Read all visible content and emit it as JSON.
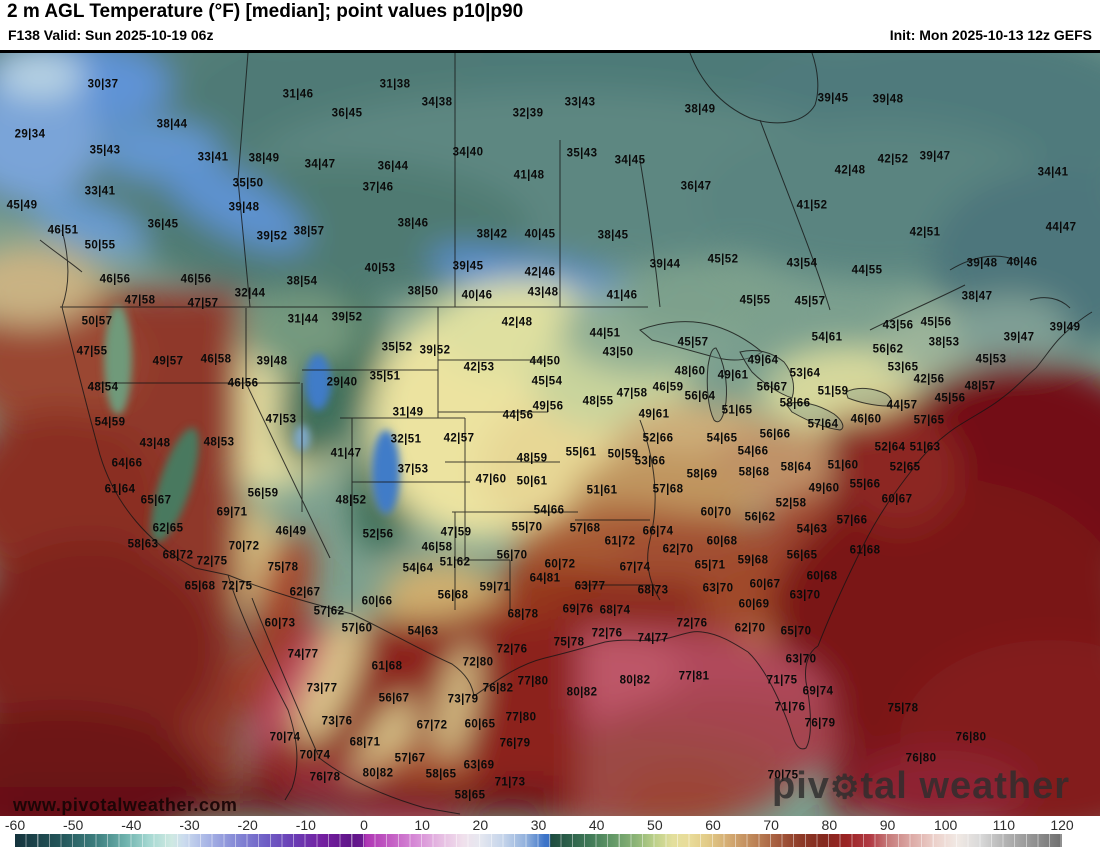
{
  "header": {
    "title": "2 m AGL Temperature (°F) [median]; point values p10|p90",
    "valid": "F138 Valid: Sun 2025-10-19 06z",
    "init": "Init: Mon 2025-10-13 12z GEFS"
  },
  "watermark": {
    "url_text": "www.pivotalweather.com",
    "brand_pre": "piv",
    "brand_gear": "⚙",
    "brand_post": "tal weather"
  },
  "colorbar": {
    "ticks": [
      -60,
      -50,
      -40,
      -30,
      -20,
      -10,
      0,
      10,
      20,
      30,
      40,
      50,
      60,
      70,
      80,
      90,
      100,
      110,
      120
    ],
    "gradient": [
      [
        0,
        "#15333d"
      ],
      [
        4.4,
        "#23565a"
      ],
      [
        7.8,
        "#3d7f7f"
      ],
      [
        10.6,
        "#6fb3ae"
      ],
      [
        12.8,
        "#a5d8d2"
      ],
      [
        15,
        "#cfe9e2"
      ],
      [
        16.1,
        "#ccdcee"
      ],
      [
        18.3,
        "#a9b6e6"
      ],
      [
        21.1,
        "#8589d6"
      ],
      [
        23.9,
        "#6f5fc6"
      ],
      [
        26.7,
        "#6a3cb4"
      ],
      [
        29.4,
        "#741fa0"
      ],
      [
        32.2,
        "#5f1588"
      ],
      [
        33.2,
        "#6a1890"
      ],
      [
        33.5,
        "#ae35b4"
      ],
      [
        36.1,
        "#c561c5"
      ],
      [
        38.3,
        "#d78cd7"
      ],
      [
        40.6,
        "#e6bbe2"
      ],
      [
        42.8,
        "#f0e0ec"
      ],
      [
        44.4,
        "#e6e8f0"
      ],
      [
        46.7,
        "#c3d3ea"
      ],
      [
        48.9,
        "#8fafdc"
      ],
      [
        50.6,
        "#3d74c8"
      ],
      [
        51,
        "#3b72c6"
      ],
      [
        51.2,
        "#1e4c40"
      ],
      [
        52.8,
        "#2c5f4a"
      ],
      [
        55,
        "#417b58"
      ],
      [
        57.2,
        "#659a68"
      ],
      [
        59.4,
        "#8fb678"
      ],
      [
        61.1,
        "#bcd089"
      ],
      [
        62.8,
        "#e3df9d"
      ],
      [
        64.4,
        "#e9dc9a"
      ],
      [
        66.1,
        "#e2cb87"
      ],
      [
        68.3,
        "#d3a971"
      ],
      [
        70.6,
        "#bd8457"
      ],
      [
        72.8,
        "#a55c3e"
      ],
      [
        75,
        "#8e3b28"
      ],
      [
        77.2,
        "#84291e"
      ],
      [
        79.4,
        "#9a2323"
      ],
      [
        81.7,
        "#b23a44"
      ],
      [
        83.3,
        "#c57878"
      ],
      [
        85.6,
        "#ddaaa6"
      ],
      [
        87.8,
        "#ecd0ca"
      ],
      [
        90,
        "#f1e9e4"
      ],
      [
        92.2,
        "#d9d9d9"
      ],
      [
        94.4,
        "#b5b5b5"
      ],
      [
        97.2,
        "#939393"
      ],
      [
        100,
        "#6f6f6f"
      ]
    ]
  },
  "map": {
    "points": [
      [
        "30|37",
        103,
        82
      ],
      [
        "29|34",
        30,
        132
      ],
      [
        "38|44",
        172,
        122
      ],
      [
        "35|43",
        105,
        148
      ],
      [
        "33|41",
        213,
        155
      ],
      [
        "38|49",
        264,
        156
      ],
      [
        "35|50",
        248,
        181
      ],
      [
        "33|41",
        100,
        189
      ],
      [
        "45|49",
        22,
        203
      ],
      [
        "39|48",
        244,
        205
      ],
      [
        "36|45",
        163,
        222
      ],
      [
        "46|51",
        63,
        228
      ],
      [
        "50|55",
        100,
        243
      ],
      [
        "39|52",
        272,
        234
      ],
      [
        "46|56",
        115,
        277
      ],
      [
        "46|56",
        196,
        277
      ],
      [
        "32|44",
        250,
        291
      ],
      [
        "47|58",
        140,
        298
      ],
      [
        "47|57",
        203,
        301
      ],
      [
        "31|46",
        298,
        92
      ],
      [
        "31|38",
        395,
        82
      ],
      [
        "34|38",
        437,
        100
      ],
      [
        "36|45",
        347,
        111
      ],
      [
        "32|39",
        528,
        111
      ],
      [
        "34|47",
        320,
        162
      ],
      [
        "36|44",
        393,
        164
      ],
      [
        "34|40",
        468,
        150
      ],
      [
        "41|48",
        529,
        173
      ],
      [
        "37|46",
        378,
        185
      ],
      [
        "38|46",
        413,
        221
      ],
      [
        "38|57",
        309,
        229
      ],
      [
        "38|42",
        492,
        232
      ],
      [
        "40|45",
        540,
        232
      ],
      [
        "40|53",
        380,
        266
      ],
      [
        "39|45",
        468,
        264
      ],
      [
        "38|54",
        302,
        279
      ],
      [
        "38|50",
        423,
        289
      ],
      [
        "40|46",
        477,
        293
      ],
      [
        "42|46",
        540,
        270
      ],
      [
        "43|48",
        543,
        290
      ],
      [
        "33|43",
        580,
        100
      ],
      [
        "38|49",
        700,
        107
      ],
      [
        "35|43",
        582,
        151
      ],
      [
        "34|45",
        630,
        158
      ],
      [
        "36|47",
        696,
        184
      ],
      [
        "41|52",
        812,
        203
      ],
      [
        "38|45",
        613,
        233
      ],
      [
        "45|52",
        723,
        257
      ],
      [
        "43|54",
        802,
        261
      ],
      [
        "39|44",
        665,
        262
      ],
      [
        "41|46",
        622,
        293
      ],
      [
        "45|55",
        755,
        298
      ],
      [
        "45|57",
        810,
        299
      ],
      [
        "39|45",
        833,
        96
      ],
      [
        "39|48",
        888,
        97
      ],
      [
        "42|52",
        893,
        157
      ],
      [
        "39|47",
        935,
        154
      ],
      [
        "42|48",
        850,
        168
      ],
      [
        "34|41",
        1053,
        170
      ],
      [
        "42|51",
        925,
        230
      ],
      [
        "44|47",
        1061,
        225
      ],
      [
        "44|55",
        867,
        268
      ],
      [
        "39|48",
        982,
        261
      ],
      [
        "40|46",
        1022,
        260
      ],
      [
        "38|47",
        977,
        294
      ],
      [
        "50|57",
        97,
        319
      ],
      [
        "47|55",
        92,
        349
      ],
      [
        "49|57",
        168,
        359
      ],
      [
        "46|58",
        216,
        357
      ],
      [
        "46|56",
        243,
        381
      ],
      [
        "48|54",
        103,
        385
      ],
      [
        "54|59",
        110,
        420
      ],
      [
        "43|48",
        155,
        441
      ],
      [
        "48|53",
        219,
        440
      ],
      [
        "64|66",
        127,
        461
      ],
      [
        "61|64",
        120,
        487
      ],
      [
        "65|67",
        156,
        498
      ],
      [
        "56|59",
        263,
        491
      ],
      [
        "69|71",
        232,
        510
      ],
      [
        "62|65",
        168,
        526
      ],
      [
        "58|63",
        143,
        542
      ],
      [
        "70|72",
        244,
        544
      ],
      [
        "68|72",
        178,
        553
      ],
      [
        "72|75",
        212,
        559
      ],
      [
        "31|44",
        303,
        317
      ],
      [
        "39|52",
        347,
        315
      ],
      [
        "42|48",
        517,
        320
      ],
      [
        "35|52",
        397,
        345
      ],
      [
        "39|52",
        435,
        348
      ],
      [
        "39|48",
        272,
        359
      ],
      [
        "29|40",
        342,
        380
      ],
      [
        "35|51",
        385,
        374
      ],
      [
        "42|53",
        479,
        365
      ],
      [
        "44|50",
        545,
        359
      ],
      [
        "45|54",
        547,
        379
      ],
      [
        "47|53",
        281,
        417
      ],
      [
        "31|49",
        408,
        410
      ],
      [
        "44|56",
        518,
        413
      ],
      [
        "32|51",
        406,
        437
      ],
      [
        "42|57",
        459,
        436
      ],
      [
        "41|47",
        346,
        451
      ],
      [
        "48|59",
        532,
        456
      ],
      [
        "37|53",
        413,
        467
      ],
      [
        "47|60",
        491,
        477
      ],
      [
        "50|61",
        532,
        479
      ],
      [
        "48|52",
        351,
        498
      ],
      [
        "46|49",
        291,
        529
      ],
      [
        "52|56",
        378,
        532
      ],
      [
        "47|59",
        456,
        530
      ],
      [
        "55|70",
        527,
        525
      ],
      [
        "46|58",
        437,
        545
      ],
      [
        "56|70",
        512,
        553
      ],
      [
        "51|62",
        455,
        560
      ],
      [
        "54|66",
        549,
        508
      ],
      [
        "44|51",
        605,
        331
      ],
      [
        "45|57",
        693,
        340
      ],
      [
        "43|50",
        618,
        350
      ],
      [
        "49|64",
        763,
        358
      ],
      [
        "48|60",
        690,
        369
      ],
      [
        "49|61",
        733,
        373
      ],
      [
        "56|67",
        772,
        385
      ],
      [
        "53|64",
        805,
        371
      ],
      [
        "46|59",
        668,
        385
      ],
      [
        "47|58",
        632,
        391
      ],
      [
        "48|55",
        598,
        399
      ],
      [
        "56|64",
        700,
        394
      ],
      [
        "58|66",
        795,
        401
      ],
      [
        "51|65",
        737,
        408
      ],
      [
        "49|61",
        654,
        412
      ],
      [
        "49|56",
        548,
        404
      ],
      [
        "52|66",
        658,
        436
      ],
      [
        "54|65",
        722,
        436
      ],
      [
        "56|66",
        775,
        432
      ],
      [
        "54|66",
        753,
        449
      ],
      [
        "53|66",
        650,
        459
      ],
      [
        "55|61",
        581,
        450
      ],
      [
        "50|59",
        623,
        452
      ],
      [
        "58|64",
        796,
        465
      ],
      [
        "58|69",
        702,
        472
      ],
      [
        "58|68",
        754,
        470
      ],
      [
        "57|64",
        823,
        422
      ],
      [
        "49|60",
        824,
        486
      ],
      [
        "51|61",
        602,
        488
      ],
      [
        "57|68",
        668,
        487
      ],
      [
        "52|58",
        791,
        501
      ],
      [
        "60|70",
        716,
        510
      ],
      [
        "56|62",
        760,
        515
      ],
      [
        "57|68",
        585,
        526
      ],
      [
        "66|74",
        658,
        529
      ],
      [
        "61|72",
        620,
        539
      ],
      [
        "62|70",
        678,
        547
      ],
      [
        "60|68",
        722,
        539
      ],
      [
        "54|63",
        812,
        527
      ],
      [
        "56|65",
        802,
        553
      ],
      [
        "59|68",
        753,
        558
      ],
      [
        "43|56",
        898,
        323
      ],
      [
        "45|56",
        936,
        320
      ],
      [
        "39|49",
        1065,
        325
      ],
      [
        "38|53",
        944,
        340
      ],
      [
        "39|47",
        1019,
        335
      ],
      [
        "56|62",
        888,
        347
      ],
      [
        "54|61",
        827,
        335
      ],
      [
        "53|65",
        903,
        365
      ],
      [
        "45|53",
        991,
        357
      ],
      [
        "42|56",
        929,
        377
      ],
      [
        "48|57",
        980,
        384
      ],
      [
        "51|59",
        833,
        389
      ],
      [
        "45|56",
        950,
        396
      ],
      [
        "44|57",
        902,
        403
      ],
      [
        "46|60",
        866,
        417
      ],
      [
        "57|65",
        929,
        418
      ],
      [
        "52|64",
        890,
        445
      ],
      [
        "51|63",
        925,
        445
      ],
      [
        "51|60",
        843,
        463
      ],
      [
        "52|65",
        905,
        465
      ],
      [
        "55|66",
        865,
        482
      ],
      [
        "60|67",
        897,
        497
      ],
      [
        "57|66",
        852,
        518
      ],
      [
        "61|68",
        865,
        548
      ],
      [
        "65|68",
        200,
        584
      ],
      [
        "72|75",
        237,
        584
      ],
      [
        "75|78",
        283,
        565
      ],
      [
        "54|64",
        418,
        566
      ],
      [
        "62|67",
        305,
        590
      ],
      [
        "59|71",
        495,
        585
      ],
      [
        "60|66",
        377,
        599
      ],
      [
        "56|68",
        453,
        593
      ],
      [
        "57|62",
        329,
        609
      ],
      [
        "60|73",
        280,
        621
      ],
      [
        "68|78",
        523,
        612
      ],
      [
        "57|60",
        357,
        626
      ],
      [
        "54|63",
        423,
        629
      ],
      [
        "74|77",
        303,
        652
      ],
      [
        "72|76",
        512,
        647
      ],
      [
        "61|68",
        387,
        664
      ],
      [
        "72|80",
        478,
        660
      ],
      [
        "73|77",
        322,
        686
      ],
      [
        "76|82",
        498,
        686
      ],
      [
        "77|80",
        533,
        679
      ],
      [
        "56|67",
        394,
        696
      ],
      [
        "73|79",
        463,
        697
      ],
      [
        "73|76",
        337,
        719
      ],
      [
        "67|72",
        432,
        723
      ],
      [
        "60|65",
        480,
        722
      ],
      [
        "77|80",
        521,
        715
      ],
      [
        "70|74",
        285,
        735
      ],
      [
        "68|71",
        365,
        740
      ],
      [
        "76|79",
        515,
        741
      ],
      [
        "70|74",
        315,
        753
      ],
      [
        "57|67",
        410,
        756
      ],
      [
        "63|69",
        479,
        763
      ],
      [
        "80|82",
        378,
        771
      ],
      [
        "58|65",
        441,
        772
      ],
      [
        "76|78",
        325,
        775
      ],
      [
        "71|73",
        510,
        780
      ],
      [
        "58|65",
        470,
        793
      ],
      [
        "60|72",
        560,
        562
      ],
      [
        "67|74",
        635,
        565
      ],
      [
        "65|71",
        710,
        563
      ],
      [
        "63|77",
        590,
        584
      ],
      [
        "68|73",
        653,
        588
      ],
      [
        "63|70",
        718,
        586
      ],
      [
        "60|67",
        765,
        582
      ],
      [
        "64|81",
        545,
        576
      ],
      [
        "69|76",
        578,
        607
      ],
      [
        "68|74",
        615,
        608
      ],
      [
        "60|69",
        754,
        602
      ],
      [
        "63|70",
        805,
        593
      ],
      [
        "72|76",
        692,
        621
      ],
      [
        "72|76",
        607,
        631
      ],
      [
        "74|77",
        653,
        636
      ],
      [
        "62|70",
        750,
        626
      ],
      [
        "65|70",
        796,
        629
      ],
      [
        "75|78",
        569,
        640
      ],
      [
        "63|70",
        801,
        657
      ],
      [
        "77|81",
        694,
        674
      ],
      [
        "80|82",
        635,
        678
      ],
      [
        "80|82",
        582,
        690
      ],
      [
        "71|75",
        782,
        678
      ],
      [
        "71|76",
        790,
        705
      ],
      [
        "70|75",
        783,
        773
      ],
      [
        "60|68",
        822,
        574
      ],
      [
        "69|74",
        818,
        689
      ],
      [
        "75|78",
        903,
        706
      ],
      [
        "76|79",
        820,
        721
      ],
      [
        "76|80",
        971,
        735
      ],
      [
        "76|80",
        921,
        756
      ]
    ]
  }
}
